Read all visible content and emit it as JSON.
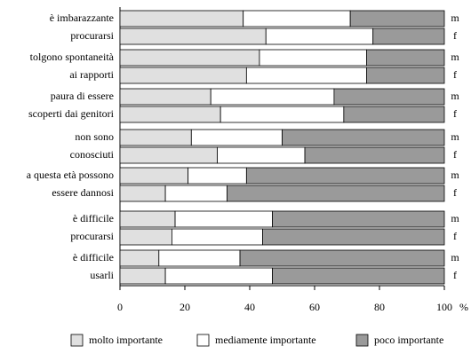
{
  "chart_data": {
    "type": "stacked-bar-horizontal",
    "categories": [
      [
        "è imbarazzante",
        "procurarsi"
      ],
      [
        "tolgono spontaneità",
        "ai rapporti"
      ],
      [
        "paura di essere",
        "scoperti dai genitori"
      ],
      [
        "non sono",
        "conosciuti"
      ],
      [
        "a questa età possono",
        "essere dannosi"
      ],
      [
        "è difficile",
        "procurarsi"
      ],
      [
        "è difficile",
        "usarli"
      ]
    ],
    "subgroups": [
      "m",
      "f"
    ],
    "series": [
      {
        "name": "molto importante",
        "color": "#e0e0e0",
        "values": [
          [
            38,
            45
          ],
          [
            43,
            39
          ],
          [
            28,
            31
          ],
          [
            22,
            30
          ],
          [
            21,
            14
          ],
          [
            17,
            16
          ],
          [
            12,
            14
          ]
        ]
      },
      {
        "name": "mediamente importante",
        "color": "#ffffff",
        "values": [
          [
            33,
            33
          ],
          [
            33,
            37
          ],
          [
            38,
            38
          ],
          [
            28,
            27
          ],
          [
            18,
            19
          ],
          [
            30,
            28
          ],
          [
            25,
            33
          ]
        ]
      },
      {
        "name": "poco importante",
        "color": "#9a9a9a",
        "values": [
          [
            29,
            22
          ],
          [
            24,
            24
          ],
          [
            34,
            31
          ],
          [
            50,
            43
          ],
          [
            61,
            67
          ],
          [
            53,
            56
          ],
          [
            63,
            53
          ]
        ]
      }
    ],
    "xlim": [
      0,
      100
    ],
    "xticks": [
      0,
      20,
      40,
      60,
      80,
      100
    ],
    "x_unit": "%"
  }
}
